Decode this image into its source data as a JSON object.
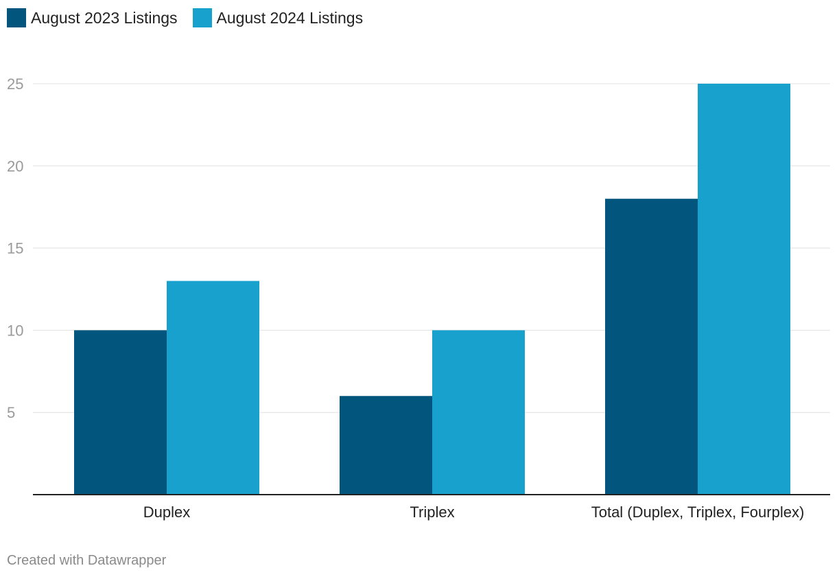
{
  "chart_data": {
    "type": "bar",
    "categories": [
      "Duplex",
      "Triplex",
      "Total (Duplex, Triplex, Fourplex)"
    ],
    "series": [
      {
        "name": "August 2023 Listings",
        "values": [
          10,
          6,
          18
        ],
        "color": "#02557d"
      },
      {
        "name": "August 2024 Listings",
        "values": [
          13,
          10,
          25
        ],
        "color": "#19a1ce"
      }
    ],
    "yticks": [
      5,
      10,
      15,
      20,
      25
    ],
    "ylim": [
      0,
      25
    ],
    "grid": true,
    "legend": "top-left"
  },
  "footer": {
    "credit": "Created with Datawrapper"
  }
}
